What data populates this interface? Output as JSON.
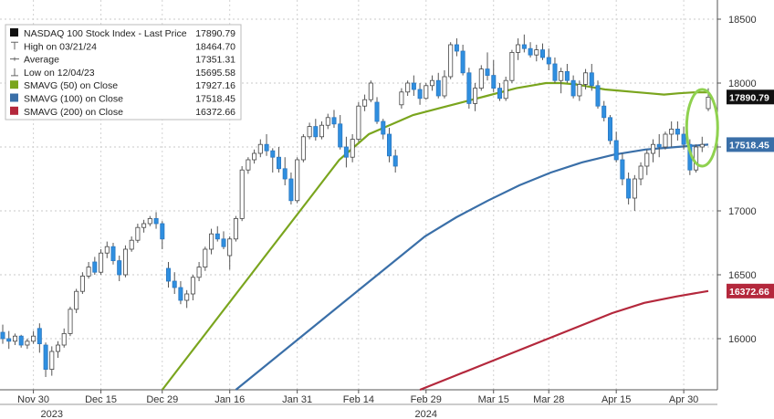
{
  "chart_data": {
    "type": "candlestick",
    "title": "NASDAQ 100 Stock Index - Last Price",
    "last_price": 17890.79,
    "y_range": [
      15600,
      18650
    ],
    "y_ticks": [
      16000,
      16500,
      17000,
      17500,
      18000,
      18500
    ],
    "y_tick_labels": [
      "16000",
      "16500",
      "17000",
      "17500",
      "18000",
      "18500"
    ],
    "x_ticks": [
      {
        "label": "Nov 30",
        "index": 5
      },
      {
        "label": "Dec 15",
        "index": 16
      },
      {
        "label": "Dec 29",
        "index": 26
      },
      {
        "label": "Jan 16",
        "index": 37
      },
      {
        "label": "Jan 31",
        "index": 48
      },
      {
        "label": "Feb 14",
        "index": 58
      },
      {
        "label": "Feb 29",
        "index": 69
      },
      {
        "label": "Mar 15",
        "index": 80
      },
      {
        "label": "Mar 28",
        "index": 89
      },
      {
        "label": "Apr 15",
        "index": 100
      },
      {
        "label": "Apr 30",
        "index": 111
      }
    ],
    "year_labels": [
      {
        "label": "2023",
        "index": 8
      },
      {
        "label": "2024",
        "index": 69
      }
    ],
    "up_color": "#ffffff",
    "down_color": "#2f8fe0",
    "candle_outline": "#444444",
    "ohlc": [
      [
        16050,
        16110,
        15960,
        16000
      ],
      [
        16000,
        16060,
        15920,
        15980
      ],
      [
        15980,
        16040,
        15950,
        16020
      ],
      [
        16020,
        16030,
        15930,
        15950
      ],
      [
        15950,
        16000,
        15920,
        15980
      ],
      [
        15980,
        16060,
        15960,
        16020
      ],
      [
        16080,
        16120,
        15890,
        15960
      ],
      [
        15950,
        15970,
        15700,
        15760
      ],
      [
        15760,
        15940,
        15710,
        15900
      ],
      [
        15900,
        15980,
        15850,
        15950
      ],
      [
        15950,
        16080,
        15930,
        16040
      ],
      [
        16040,
        16250,
        16020,
        16230
      ],
      [
        16230,
        16390,
        16200,
        16370
      ],
      [
        16370,
        16520,
        16350,
        16490
      ],
      [
        16490,
        16600,
        16470,
        16560
      ],
      [
        16600,
        16640,
        16500,
        16520
      ],
      [
        16520,
        16700,
        16500,
        16670
      ],
      [
        16670,
        16760,
        16630,
        16720
      ],
      [
        16720,
        16750,
        16580,
        16610
      ],
      [
        16610,
        16650,
        16450,
        16500
      ],
      [
        16500,
        16730,
        16480,
        16700
      ],
      [
        16700,
        16800,
        16680,
        16770
      ],
      [
        16770,
        16900,
        16750,
        16870
      ],
      [
        16870,
        16930,
        16830,
        16900
      ],
      [
        16900,
        16960,
        16880,
        16940
      ],
      [
        16940,
        16990,
        16860,
        16900
      ],
      [
        16900,
        16920,
        16700,
        16780
      ],
      [
        16550,
        16600,
        16400,
        16450
      ],
      [
        16450,
        16520,
        16350,
        16400
      ],
      [
        16400,
        16450,
        16270,
        16300
      ],
      [
        16300,
        16380,
        16240,
        16350
      ],
      [
        16350,
        16500,
        16300,
        16480
      ],
      [
        16480,
        16600,
        16450,
        16560
      ],
      [
        16560,
        16720,
        16530,
        16700
      ],
      [
        16700,
        16860,
        16660,
        16820
      ],
      [
        16820,
        16880,
        16760,
        16780
      ],
      [
        16780,
        16840,
        16700,
        16720
      ],
      [
        16650,
        16800,
        16540,
        16780
      ],
      [
        16780,
        16960,
        16760,
        16940
      ],
      [
        16940,
        17350,
        16920,
        17320
      ],
      [
        17320,
        17420,
        17290,
        17400
      ],
      [
        17400,
        17480,
        17370,
        17450
      ],
      [
        17450,
        17560,
        17420,
        17520
      ],
      [
        17520,
        17600,
        17430,
        17470
      ],
      [
        17470,
        17490,
        17300,
        17420
      ],
      [
        17420,
        17500,
        17300,
        17330
      ],
      [
        17330,
        17420,
        17200,
        17250
      ],
      [
        17250,
        17300,
        17050,
        17080
      ],
      [
        17080,
        17420,
        17060,
        17400
      ],
      [
        17400,
        17600,
        17380,
        17580
      ],
      [
        17580,
        17690,
        17560,
        17660
      ],
      [
        17660,
        17720,
        17550,
        17580
      ],
      [
        17580,
        17700,
        17560,
        17670
      ],
      [
        17670,
        17760,
        17640,
        17730
      ],
      [
        17730,
        17790,
        17650,
        17680
      ],
      [
        17680,
        17750,
        17480,
        17500
      ],
      [
        17500,
        17580,
        17340,
        17420
      ],
      [
        17420,
        17600,
        17380,
        17560
      ],
      [
        17560,
        17850,
        17540,
        17820
      ],
      [
        17820,
        17910,
        17780,
        17870
      ],
      [
        17870,
        18020,
        17850,
        18000
      ],
      [
        17850,
        17890,
        17680,
        17700
      ],
      [
        17700,
        17720,
        17560,
        17600
      ],
      [
        17600,
        17650,
        17380,
        17430
      ],
      [
        17430,
        17480,
        17300,
        17350
      ],
      [
        17830,
        17960,
        17800,
        17930
      ],
      [
        17930,
        18020,
        17900,
        18000
      ],
      [
        18000,
        18060,
        17900,
        17950
      ],
      [
        17950,
        18000,
        17830,
        17880
      ],
      [
        17880,
        18000,
        17870,
        17980
      ],
      [
        17980,
        18060,
        17940,
        18020
      ],
      [
        18020,
        18080,
        17880,
        17900
      ],
      [
        17900,
        18100,
        17880,
        18050
      ],
      [
        18050,
        18320,
        18030,
        18300
      ],
      [
        18300,
        18350,
        18210,
        18250
      ],
      [
        18250,
        18300,
        18060,
        18080
      ],
      [
        18080,
        18120,
        17800,
        17840
      ],
      [
        17840,
        18000,
        17780,
        17960
      ],
      [
        17960,
        18140,
        17940,
        18110
      ],
      [
        18110,
        18240,
        18020,
        18060
      ],
      [
        18060,
        18180,
        17930,
        17960
      ],
      [
        17960,
        18000,
        17860,
        17880
      ],
      [
        17880,
        18050,
        17860,
        18020
      ],
      [
        18020,
        18260,
        18000,
        18240
      ],
      [
        18240,
        18350,
        18180,
        18300
      ],
      [
        18300,
        18380,
        18240,
        18270
      ],
      [
        18270,
        18320,
        18200,
        18220
      ],
      [
        18220,
        18300,
        18170,
        18260
      ],
      [
        18260,
        18310,
        18180,
        18200
      ],
      [
        18200,
        18270,
        18100,
        18150
      ],
      [
        18150,
        18200,
        18000,
        18020
      ],
      [
        18020,
        18120,
        17920,
        18090
      ],
      [
        18090,
        18150,
        18000,
        18020
      ],
      [
        18020,
        18060,
        17880,
        17900
      ],
      [
        17900,
        18020,
        17860,
        17990
      ],
      [
        17990,
        18110,
        17950,
        18080
      ],
      [
        18080,
        18150,
        17940,
        17980
      ],
      [
        17980,
        18020,
        17800,
        17820
      ],
      [
        17820,
        17860,
        17700,
        17730
      ],
      [
        17730,
        17750,
        17520,
        17550
      ],
      [
        17550,
        17620,
        17380,
        17400
      ],
      [
        17400,
        17450,
        17200,
        17250
      ],
      [
        17250,
        17300,
        17050,
        17100
      ],
      [
        17100,
        17280,
        17000,
        17250
      ],
      [
        17250,
        17380,
        17200,
        17350
      ],
      [
        17350,
        17480,
        17280,
        17450
      ],
      [
        17450,
        17560,
        17380,
        17520
      ],
      [
        17520,
        17600,
        17420,
        17500
      ],
      [
        17500,
        17620,
        17480,
        17600
      ],
      [
        17600,
        17700,
        17500,
        17640
      ],
      [
        17640,
        17700,
        17550,
        17600
      ],
      [
        17600,
        17660,
        17480,
        17520
      ],
      [
        17520,
        17560,
        17280,
        17320
      ],
      [
        17320,
        17520,
        17300,
        17500
      ],
      [
        17500,
        17580,
        17460,
        17520
      ],
      [
        17800,
        17960,
        17780,
        17890
      ]
    ],
    "series": [
      {
        "name": "SMAVG (50)  on Close",
        "value": 17927.16,
        "color": "#7aa51e",
        "start_index": 26,
        "values": [
          15600,
          15750,
          15900,
          16050,
          16200,
          16350,
          16500,
          16650,
          16800,
          16950,
          17100,
          17250,
          17400,
          17500,
          17600,
          17650,
          17700,
          17750,
          17780,
          17810,
          17840,
          17870,
          17900,
          17930,
          17960,
          17980,
          18000,
          18000,
          17990,
          17970,
          17950,
          17940,
          17930,
          17920,
          17910,
          17920,
          17927.16,
          17927.16
        ]
      },
      {
        "name": "SMAVG (100)  on Close",
        "value": 17518.45,
        "color": "#3a6fa8",
        "start_index": 38,
        "values": [
          15600,
          15800,
          16000,
          16200,
          16400,
          16600,
          16800,
          16950,
          17080,
          17200,
          17300,
          17380,
          17440,
          17480,
          17500,
          17518.45
        ]
      },
      {
        "name": "SMAVG (200)  on Close",
        "value": 16372.66,
        "color": "#b4283c",
        "start_index": 68,
        "values": [
          15600,
          15700,
          15800,
          15900,
          16000,
          16100,
          16200,
          16280,
          16330,
          16372.66
        ]
      }
    ],
    "legend": [
      {
        "label": "NASDAQ 100 Stock Index - Last Price",
        "value": "17890.79",
        "swatch": "#111111"
      },
      {
        "label": "High on 03/21/24",
        "value": "18464.70",
        "swatch": "none"
      },
      {
        "label": "Average",
        "value": "17351.31",
        "swatch": "none"
      },
      {
        "label": "Low on 12/04/23",
        "value": "15695.58",
        "swatch": "none"
      },
      {
        "label": "SMAVG (50)  on Close",
        "value": "17927.16",
        "swatch": "#7aa51e"
      },
      {
        "label": "SMAVG (100)  on Close",
        "value": "17518.45",
        "swatch": "#3a6fa8"
      },
      {
        "label": "SMAVG (200)  on Close",
        "value": "16372.66",
        "swatch": "#b4283c"
      }
    ],
    "price_tags": [
      {
        "value": 17890.79,
        "label": "17890.79",
        "bg": "#111111",
        "fg": "#ffffff"
      },
      {
        "value": 17518.45,
        "label": "17518.45",
        "bg": "#3a6fa8",
        "fg": "#ffffff"
      },
      {
        "value": 16372.66,
        "label": "16372.66",
        "bg": "#b4283c",
        "fg": "#ffffff"
      }
    ],
    "highlight_color": "#8fd14f",
    "grid": true,
    "legend_position": "top-left"
  }
}
